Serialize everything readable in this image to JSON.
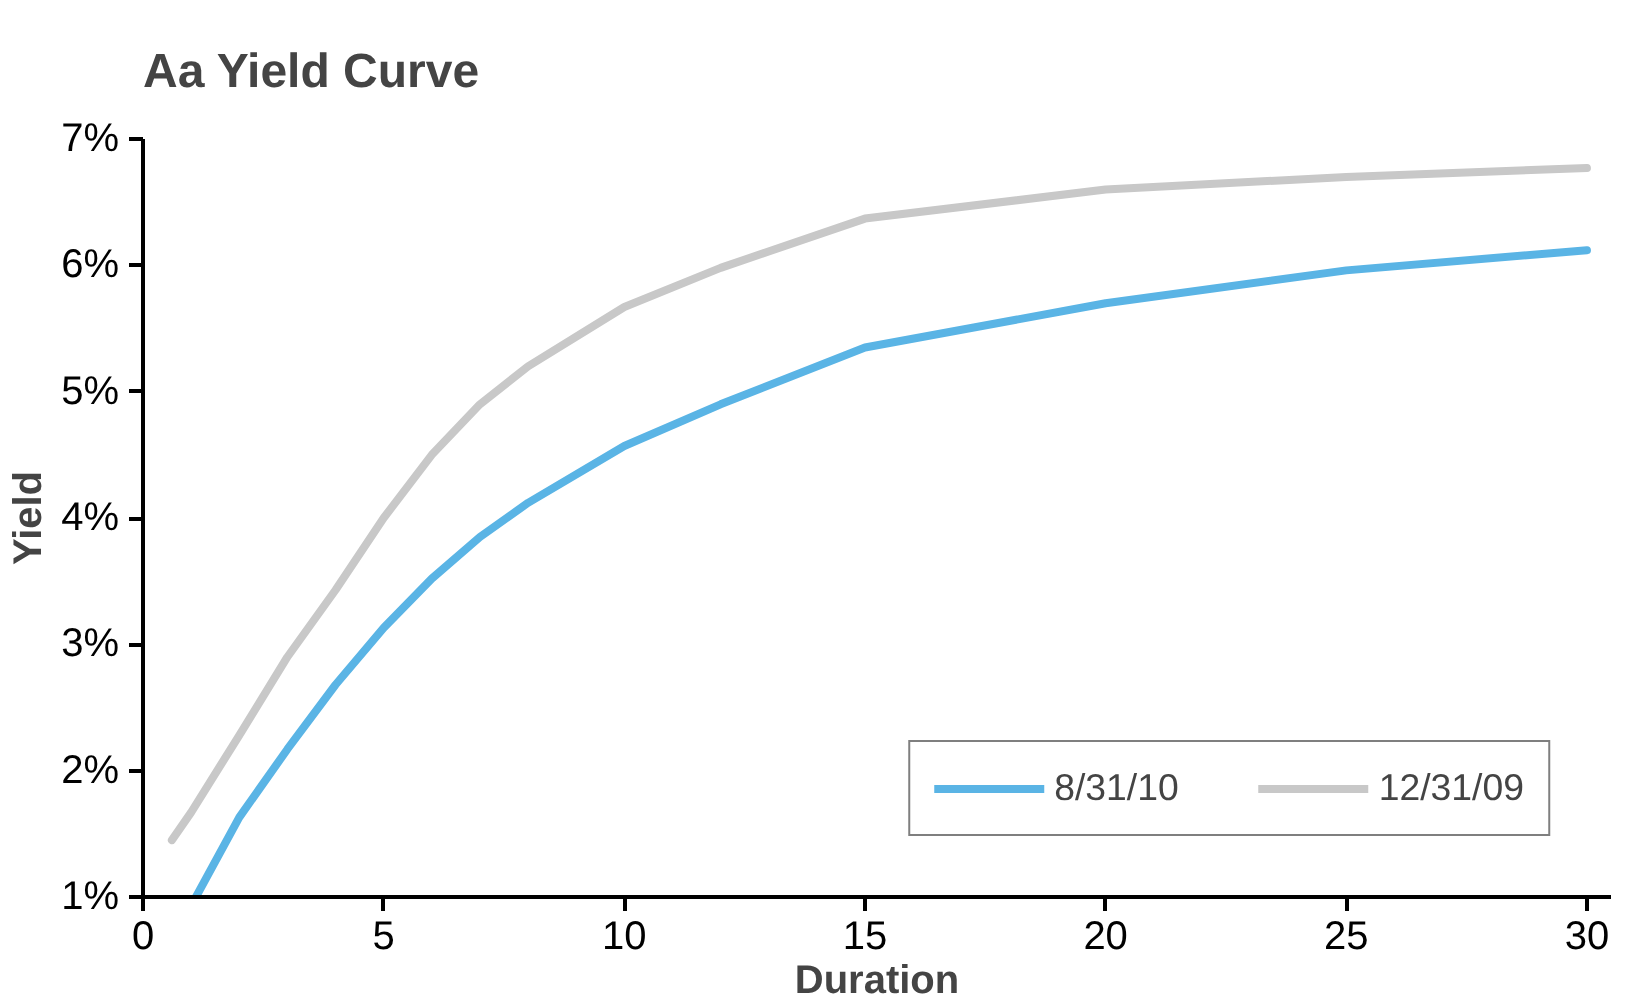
{
  "chart_data": {
    "type": "line",
    "title": "Aa Yield Curve",
    "xlabel": "Duration",
    "ylabel": "Yield",
    "xlim": [
      0,
      30.5
    ],
    "xticks": [
      0,
      5,
      10,
      15,
      20,
      25,
      30
    ],
    "ylim": [
      1,
      7
    ],
    "yticks": [
      {
        "value": 1,
        "label": "1%"
      },
      {
        "value": 2,
        "label": "2%"
      },
      {
        "value": 3,
        "label": "3%"
      },
      {
        "value": 4,
        "label": "4%"
      },
      {
        "value": 5,
        "label": "5%"
      },
      {
        "value": 6,
        "label": "6%"
      },
      {
        "value": 7,
        "label": "7%"
      }
    ],
    "grid": false,
    "legend": "bottom right",
    "marker": "none",
    "line_style": "solid",
    "series": [
      {
        "name": "8/31/10",
        "color": "#5ab4e5",
        "x": [
          1.1,
          2,
          3,
          4,
          5,
          6,
          7,
          8,
          10,
          12,
          15,
          20,
          25,
          30
        ],
        "values": [
          1.0,
          1.63,
          2.17,
          2.68,
          3.13,
          3.52,
          3.85,
          4.12,
          4.57,
          4.9,
          5.35,
          5.7,
          5.96,
          6.12
        ]
      },
      {
        "name": "12/31/09",
        "color": "#c8c8c8",
        "x": [
          0.6,
          1,
          2,
          3,
          4,
          5,
          6,
          7,
          8,
          10,
          12,
          15,
          20,
          25,
          30
        ],
        "values": [
          1.45,
          1.67,
          2.28,
          2.9,
          3.43,
          4.0,
          4.5,
          4.9,
          5.2,
          5.67,
          5.98,
          6.37,
          6.6,
          6.7,
          6.77
        ]
      }
    ]
  }
}
